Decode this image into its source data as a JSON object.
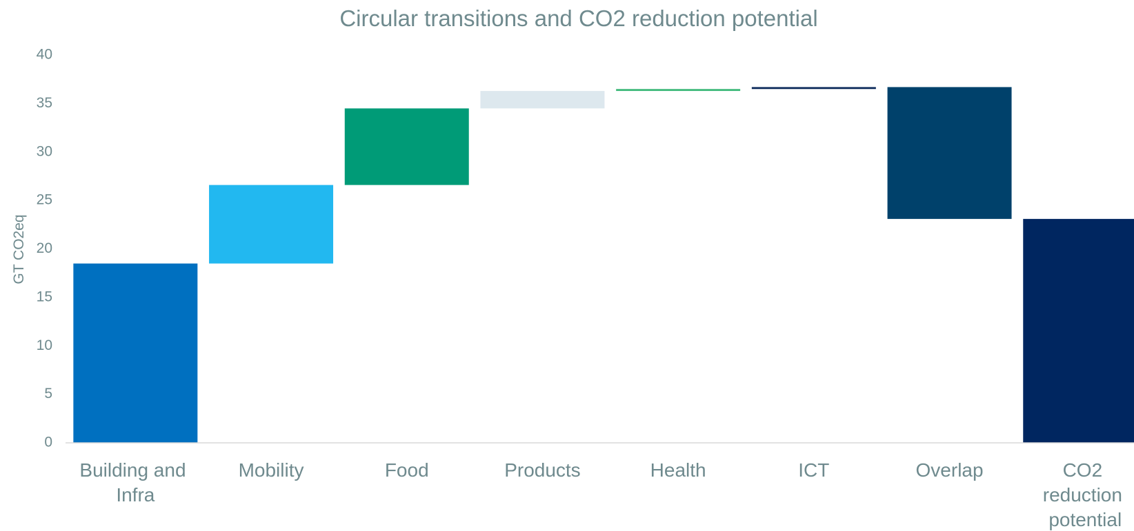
{
  "chart_data": {
    "type": "waterfall",
    "title": "Circular transitions and CO2 reduction potential",
    "y_label": "GT CO2eq",
    "categories": [
      "Building and Infra",
      "Mobility",
      "Food",
      "Products",
      "Health",
      "ICT",
      "Overlap",
      "CO2 reduction potential"
    ],
    "values": [
      18.5,
      8.1,
      7.9,
      1.8,
      0.2,
      0.2,
      -13.6,
      23.1
    ],
    "is_total": [
      false,
      false,
      false,
      false,
      false,
      false,
      false,
      true
    ],
    "colors": [
      "#0070c0",
      "#22b8f0",
      "#009b77",
      "#dde8ee",
      "#3cb878",
      "#0c2a5b",
      "#00416b",
      "#002660"
    ],
    "ylim": [
      0,
      40
    ],
    "yticks": [
      0,
      5,
      10,
      15,
      20,
      25,
      30,
      35,
      40
    ],
    "grid": false
  }
}
